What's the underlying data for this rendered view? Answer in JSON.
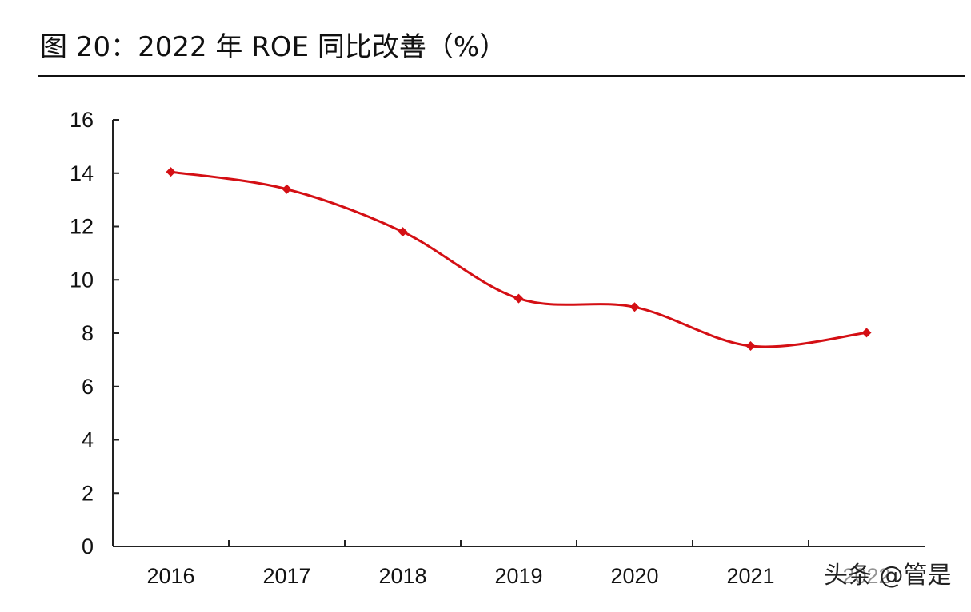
{
  "title": "图 20：2022 年 ROE 同比改善（%）",
  "watermark": "头条 @管是",
  "colors": {
    "series": "#d40f14",
    "axis": "#222222",
    "text": "#111111"
  },
  "chart_data": {
    "type": "line",
    "title": "图 20：2022 年 ROE 同比改善（%）",
    "xlabel": "",
    "ylabel": "",
    "ylim": [
      0,
      16
    ],
    "yticks": [
      0,
      2,
      4,
      6,
      8,
      10,
      12,
      14,
      16
    ],
    "categories": [
      "2016",
      "2017",
      "2018",
      "2019",
      "2020",
      "2021",
      "2022"
    ],
    "grid": false,
    "smooth": true,
    "series": [
      {
        "name": "",
        "values": [
          14.05,
          13.4,
          11.8,
          9.3,
          8.98,
          7.52,
          8.02
        ]
      }
    ]
  }
}
